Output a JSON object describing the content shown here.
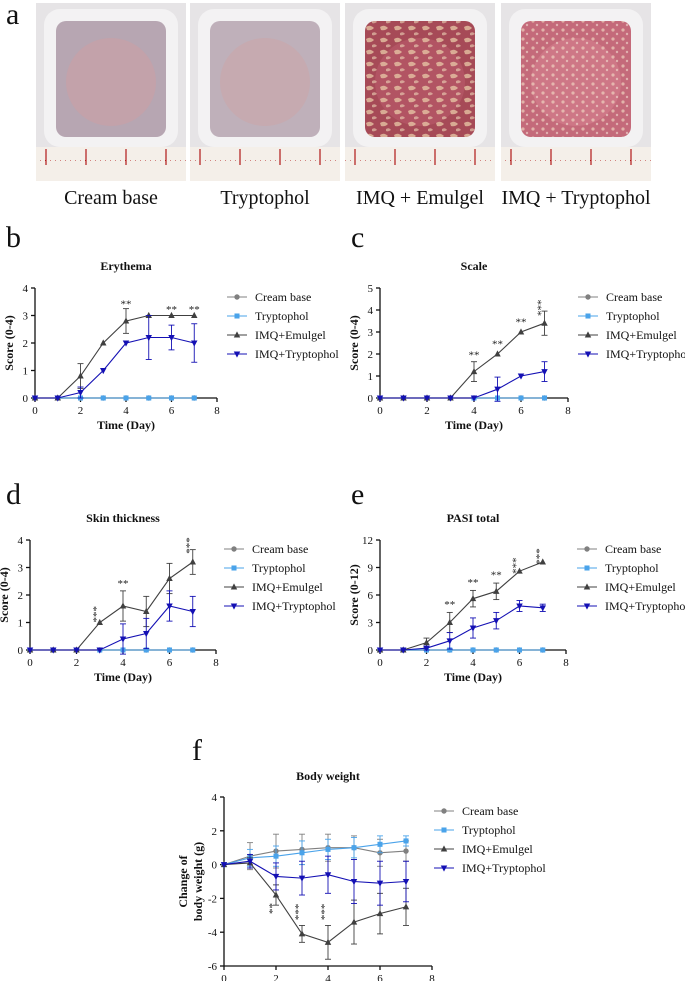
{
  "panel_letters": [
    "a",
    "b",
    "c",
    "d",
    "e",
    "f"
  ],
  "photos": [
    {
      "label": "Cream base",
      "skin": "#b7a6b2",
      "patch": "#c9a0a6"
    },
    {
      "label": "Tryptophol",
      "skin": "#bfb0ba",
      "patch": "#caa7ab"
    },
    {
      "label": "IMQ + Emulgel",
      "skin": "#a64a57",
      "patch": "#b9596a"
    },
    {
      "label": "IMQ + Tryptophol",
      "skin": "#c46a7a",
      "patch": "#d47e8d"
    }
  ],
  "series_styles": [
    {
      "name": "Cream base",
      "color": "#808080",
      "marker": "circle"
    },
    {
      "name": "Tryptophol",
      "color": "#4aa3ea",
      "marker": "square"
    },
    {
      "name": "IMQ+Emulgel",
      "color": "#404040",
      "marker": "triangle-up"
    },
    {
      "name": "IMQ+Tryptophol",
      "color": "#1410b4",
      "marker": "triangle-down"
    }
  ],
  "chart_data": [
    {
      "type": "line",
      "panel": "b",
      "title": "Erythema",
      "xlabel": "Time (Day)",
      "ylabel": "Score (0-4)",
      "xlim": [
        0,
        8
      ],
      "ylim": [
        0,
        4
      ],
      "xticks": [
        0,
        2,
        4,
        6,
        8
      ],
      "yticks": [
        0,
        1,
        2,
        3,
        4
      ],
      "grid": false,
      "legend": "right",
      "x": [
        0,
        1,
        2,
        3,
        4,
        5,
        6,
        7
      ],
      "series": [
        {
          "name": "Cream base",
          "values": [
            0,
            0,
            0,
            0,
            0,
            0,
            0,
            0
          ],
          "errors": [
            0,
            0,
            0,
            0,
            0,
            0,
            0,
            0
          ]
        },
        {
          "name": "Tryptophol",
          "values": [
            0,
            0,
            0,
            0,
            0,
            0,
            0,
            0
          ],
          "errors": [
            0,
            0,
            0,
            0,
            0,
            0,
            0,
            0
          ]
        },
        {
          "name": "IMQ+Emulgel",
          "values": [
            0,
            0,
            0.8,
            2.0,
            2.8,
            3.0,
            3.0,
            3.0
          ],
          "errors": [
            0,
            0,
            0.45,
            0,
            0.45,
            0,
            0,
            0
          ]
        },
        {
          "name": "IMQ+Tryptophol",
          "values": [
            0,
            0,
            0.2,
            1.0,
            2.0,
            2.2,
            2.2,
            2.0
          ],
          "errors": [
            0,
            0,
            0.2,
            0,
            0,
            0.8,
            0.45,
            0.7
          ]
        }
      ],
      "annotations": [
        {
          "x": 4,
          "y": 3.3,
          "text": "**"
        },
        {
          "x": 6,
          "y": 3.1,
          "text": "**"
        },
        {
          "x": 7,
          "y": 3.1,
          "text": "**"
        }
      ]
    },
    {
      "type": "line",
      "panel": "c",
      "title": "Scale",
      "xlabel": "Time (Day)",
      "ylabel": "Score (0-4)",
      "xlim": [
        0,
        8
      ],
      "ylim": [
        0,
        5
      ],
      "xticks": [
        0,
        2,
        4,
        6,
        8
      ],
      "yticks": [
        0,
        1,
        2,
        3,
        4,
        5
      ],
      "grid": false,
      "legend": "right",
      "x": [
        0,
        1,
        2,
        3,
        4,
        5,
        6,
        7
      ],
      "series": [
        {
          "name": "Cream base",
          "values": [
            0,
            0,
            0,
            0,
            0,
            0,
            0,
            0
          ],
          "errors": [
            0,
            0,
            0,
            0,
            0,
            0,
            0,
            0
          ]
        },
        {
          "name": "Tryptophol",
          "values": [
            0,
            0,
            0,
            0,
            0,
            0,
            0,
            0
          ],
          "errors": [
            0,
            0,
            0,
            0,
            0,
            0,
            0,
            0
          ]
        },
        {
          "name": "IMQ+Emulgel",
          "values": [
            0,
            0,
            0,
            0,
            1.2,
            2.0,
            3.0,
            3.4
          ],
          "errors": [
            0,
            0,
            0,
            0,
            0.45,
            0,
            0,
            0.55
          ]
        },
        {
          "name": "IMQ+Tryptophol",
          "values": [
            0,
            0,
            0,
            0,
            0,
            0.4,
            1.0,
            1.2
          ],
          "errors": [
            0,
            0,
            0,
            0,
            0,
            0.55,
            0,
            0.45
          ]
        }
      ],
      "annotations": [
        {
          "x": 4,
          "y": 1.8,
          "text": "**"
        },
        {
          "x": 5,
          "y": 2.3,
          "text": "**"
        },
        {
          "x": 6,
          "y": 3.3,
          "text": "**"
        },
        {
          "x": 7,
          "y": 4.1,
          "text": "***"
        }
      ]
    },
    {
      "type": "line",
      "panel": "d",
      "title": "Skin thickness",
      "xlabel": "Time (Day)",
      "ylabel": "Score (0-4)",
      "xlim": [
        0,
        8
      ],
      "ylim": [
        0,
        4
      ],
      "xticks": [
        0,
        2,
        4,
        6,
        8
      ],
      "yticks": [
        0,
        1,
        2,
        3,
        4
      ],
      "grid": false,
      "legend": "right",
      "x": [
        0,
        1,
        2,
        3,
        4,
        5,
        6,
        7
      ],
      "series": [
        {
          "name": "Cream base",
          "values": [
            0,
            0,
            0,
            0,
            0,
            0,
            0,
            0
          ],
          "errors": [
            0,
            0,
            0,
            0,
            0,
            0,
            0,
            0
          ]
        },
        {
          "name": "Tryptophol",
          "values": [
            0,
            0,
            0,
            0,
            0,
            0,
            0,
            0
          ],
          "errors": [
            0,
            0,
            0,
            0,
            0,
            0,
            0,
            0
          ]
        },
        {
          "name": "IMQ+Emulgel",
          "values": [
            0,
            0,
            0,
            1.0,
            1.6,
            1.4,
            2.6,
            3.2
          ],
          "errors": [
            0,
            0,
            0,
            0,
            0.55,
            0.55,
            0.55,
            0.45
          ]
        },
        {
          "name": "IMQ+Tryptophol",
          "values": [
            0,
            0,
            0,
            0,
            0.4,
            0.6,
            1.6,
            1.4
          ],
          "errors": [
            0,
            0,
            0,
            0,
            0.55,
            0.55,
            0.55,
            0.55
          ]
        }
      ],
      "annotations": [
        {
          "x": 3,
          "y": 1.3,
          "text": "***"
        },
        {
          "x": 4,
          "y": 2.3,
          "text": "**"
        },
        {
          "x": 7,
          "y": 3.8,
          "text": "***"
        }
      ]
    },
    {
      "type": "line",
      "panel": "e",
      "title": "PASI total",
      "xlabel": "Time (Day)",
      "ylabel": "Score (0-12)",
      "xlim": [
        0,
        8
      ],
      "ylim": [
        0,
        12
      ],
      "xticks": [
        0,
        2,
        4,
        6,
        8
      ],
      "yticks": [
        0,
        3,
        6,
        9,
        12
      ],
      "grid": false,
      "legend": "right",
      "x": [
        0,
        1,
        2,
        3,
        4,
        5,
        6,
        7
      ],
      "series": [
        {
          "name": "Cream base",
          "values": [
            0,
            0,
            0,
            0,
            0,
            0,
            0,
            0
          ],
          "errors": [
            0,
            0,
            0,
            0,
            0,
            0,
            0,
            0
          ]
        },
        {
          "name": "Tryptophol",
          "values": [
            0,
            0,
            0,
            0,
            0,
            0,
            0,
            0
          ],
          "errors": [
            0,
            0,
            0,
            0,
            0,
            0,
            0,
            0
          ]
        },
        {
          "name": "IMQ+Emulgel",
          "values": [
            0,
            0,
            0.8,
            3.0,
            5.6,
            6.4,
            8.6,
            9.6
          ],
          "errors": [
            0,
            0,
            0.5,
            1.1,
            0.9,
            0.9,
            0,
            0
          ]
        },
        {
          "name": "IMQ+Tryptophol",
          "values": [
            0,
            0,
            0.2,
            1.0,
            2.4,
            3.2,
            4.8,
            4.6
          ],
          "errors": [
            0,
            0,
            0.2,
            0.9,
            1.1,
            0.9,
            0.6,
            0.4
          ]
        }
      ],
      "annotations": [
        {
          "x": 3,
          "y": 4.6,
          "text": "**"
        },
        {
          "x": 4,
          "y": 7.0,
          "text": "**"
        },
        {
          "x": 5,
          "y": 7.8,
          "text": "**"
        },
        {
          "x": 6,
          "y": 9.2,
          "text": "***"
        },
        {
          "x": 7,
          "y": 10.2,
          "text": "***"
        }
      ]
    },
    {
      "type": "line",
      "panel": "f",
      "title": "Body weight",
      "xlabel": "Time (Day)",
      "ylabel": "Change of body weight (g)",
      "xlim": [
        0,
        8
      ],
      "ylim": [
        -6,
        4
      ],
      "xticks": [
        0,
        2,
        4,
        6,
        8
      ],
      "yticks": [
        -6,
        -4,
        -2,
        0,
        2,
        4
      ],
      "grid": false,
      "legend": "right",
      "x": [
        0,
        1,
        2,
        3,
        4,
        5,
        6,
        7
      ],
      "series": [
        {
          "name": "Cream base",
          "values": [
            0,
            0.5,
            0.8,
            0.9,
            1.0,
            1.0,
            0.7,
            0.8
          ],
          "errors": [
            0,
            0.8,
            1.0,
            0.9,
            0.8,
            0.7,
            0.8,
            0.6
          ]
        },
        {
          "name": "Tryptophol",
          "values": [
            0,
            0.4,
            0.5,
            0.7,
            0.9,
            1.0,
            1.2,
            1.4
          ],
          "errors": [
            0,
            0.5,
            0.6,
            0.7,
            0.6,
            0.6,
            0.5,
            0.3
          ]
        },
        {
          "name": "IMQ+Emulgel",
          "values": [
            0,
            0.1,
            -1.8,
            -4.1,
            -4.6,
            -3.4,
            -2.9,
            -2.5
          ],
          "errors": [
            0,
            0.3,
            0.6,
            0.5,
            1.0,
            1.3,
            1.2,
            1.1
          ]
        },
        {
          "name": "IMQ+Tryptophol",
          "values": [
            0,
            0.2,
            -0.7,
            -0.8,
            -0.6,
            -1.0,
            -1.1,
            -1.0
          ],
          "errors": [
            0,
            0.4,
            0.8,
            1.0,
            1.1,
            1.3,
            1.3,
            1.2
          ]
        }
      ],
      "annotations": [
        {
          "x": 2,
          "y": -2.6,
          "text": "**",
          "rotate": true
        },
        {
          "x": 3,
          "y": -2.8,
          "text": "***",
          "rotate": true
        },
        {
          "x": 4,
          "y": -2.8,
          "text": "***",
          "rotate": true
        }
      ]
    }
  ]
}
